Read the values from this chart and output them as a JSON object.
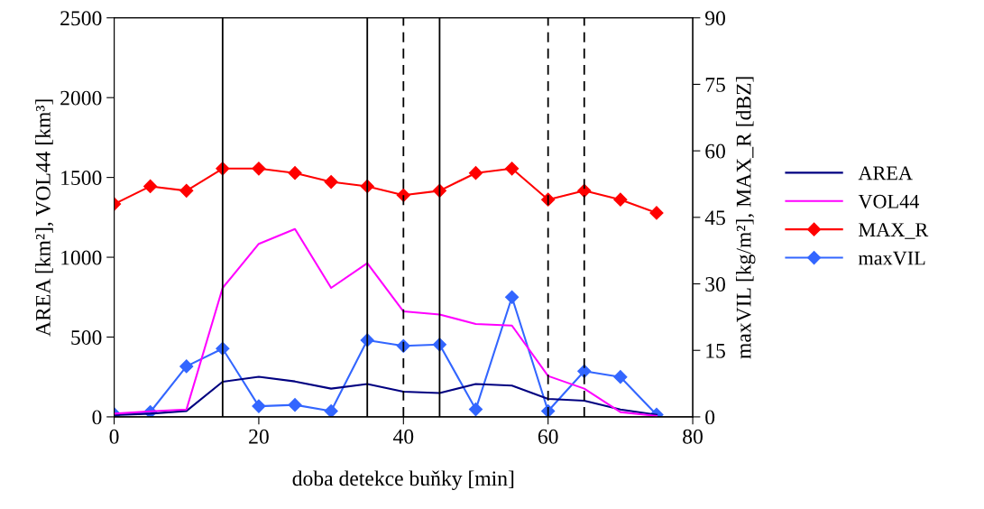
{
  "chart_data": {
    "type": "line",
    "xlabel": "doba detekce buňky [min]",
    "ylabel": "AREA [km²], VOL44 [km³]",
    "y2label": "maxVIL [kg/m²], MAX_R [dBZ]",
    "x": [
      0,
      5,
      10,
      15,
      20,
      25,
      30,
      35,
      40,
      45,
      50,
      55,
      60,
      65,
      70,
      75
    ],
    "series": [
      {
        "name": "AREA",
        "color": "#000080",
        "marker": "none",
        "values": [
          11,
          20,
          37,
          220,
          251,
          222,
          177,
          206,
          158,
          149,
          206,
          196,
          113,
          101,
          46,
          13
        ]
      },
      {
        "name": "VOL44",
        "color": "#ff00ff",
        "marker": "none",
        "values": [
          20,
          35,
          46,
          808,
          1084,
          1177,
          808,
          963,
          661,
          641,
          582,
          572,
          256,
          177,
          30,
          6
        ]
      },
      {
        "name": "MAX_R",
        "color": "#ff0000",
        "marker": "diamond",
        "axis": "y2",
        "values": [
          48,
          52,
          51,
          56,
          56,
          55,
          53,
          52,
          50,
          51,
          55,
          56,
          49,
          51,
          49,
          46
        ]
      },
      {
        "name": "maxVIL",
        "color": "#3366ff",
        "marker": "diamond",
        "axis": "y2",
        "values": [
          0.6,
          1.1,
          11.4,
          15.4,
          2.4,
          2.7,
          1.3,
          17.3,
          16.0,
          16.3,
          1.7,
          27.0,
          1.3,
          10.3,
          9.0,
          0.5
        ]
      }
    ],
    "ref_lines": [
      {
        "axis": "x",
        "value": 15,
        "color": "#000000",
        "line_style": "solid"
      },
      {
        "axis": "x",
        "value": 35,
        "color": "#000000",
        "line_style": "solid"
      },
      {
        "axis": "x",
        "value": 40,
        "color": "#000000",
        "line_style": "dashed"
      },
      {
        "axis": "x",
        "value": 45,
        "color": "#000000",
        "line_style": "solid"
      },
      {
        "axis": "x",
        "value": 60,
        "color": "#000000",
        "line_style": "dashed"
      },
      {
        "axis": "x",
        "value": 65,
        "color": "#000000",
        "line_style": "dashed"
      }
    ],
    "xlim": [
      0,
      80
    ],
    "xticks": [
      0,
      20,
      40,
      60,
      80
    ],
    "ylim": [
      0,
      2500
    ],
    "yticks": [
      0,
      500,
      1000,
      1500,
      2000,
      2500
    ],
    "y2lim": [
      0,
      90
    ],
    "y2ticks": [
      0,
      15,
      30,
      45,
      60,
      75,
      90
    ],
    "grid": false,
    "legend": "right"
  }
}
